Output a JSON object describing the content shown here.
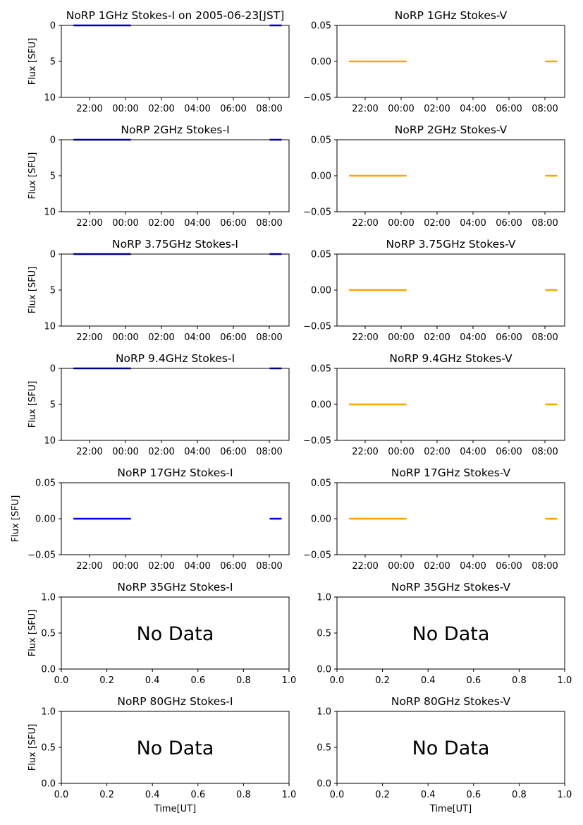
{
  "figure": {
    "ylabel": "Flux [SFU]",
    "xlabel": "Time[UT]",
    "no_data_text": "No Data",
    "colors": {
      "stokes_i": "#0000ff",
      "stokes_v": "#ffa500",
      "axes": "#000000",
      "background": "#ffffff"
    }
  },
  "chart_data": [
    {
      "id": "p1",
      "type": "line",
      "title": "NoRP 1GHz Stokes-I on 2005-06-23[JST]",
      "status": "data",
      "ylabel": "Flux [SFU]",
      "xlabel": "",
      "ylim": [
        10,
        0
      ],
      "yticks": [
        "0",
        "5",
        "10"
      ],
      "xticks": [
        "22:00",
        "00:00",
        "02:00",
        "04:00",
        "06:00",
        "08:00"
      ],
      "series_color": "#0000ff",
      "segments": [
        {
          "start": "20:55",
          "end": "00:07",
          "value": 0
        },
        {
          "start": "07:50",
          "end": "08:30",
          "value": 0
        }
      ]
    },
    {
      "id": "p2",
      "type": "line",
      "title": "NoRP 1GHz Stokes-V",
      "status": "data",
      "ylabel": "",
      "xlabel": "",
      "ylim": [
        -0.05,
        0.05
      ],
      "yticks": [
        "0.05",
        "0.00",
        "−0.05"
      ],
      "xticks": [
        "22:00",
        "00:00",
        "02:00",
        "04:00",
        "06:00",
        "08:00"
      ],
      "series_color": "#ffa500",
      "segments": [
        {
          "start": "20:55",
          "end": "00:07",
          "value": 0
        },
        {
          "start": "07:50",
          "end": "08:30",
          "value": 0
        }
      ]
    },
    {
      "id": "p3",
      "type": "line",
      "title": "NoRP 2GHz Stokes-I",
      "status": "data",
      "ylabel": "Flux [SFU]",
      "xlabel": "",
      "ylim": [
        10,
        0
      ],
      "yticks": [
        "0",
        "5",
        "10"
      ],
      "xticks": [
        "22:00",
        "00:00",
        "02:00",
        "04:00",
        "06:00",
        "08:00"
      ],
      "series_color": "#0000ff",
      "segments": [
        {
          "start": "20:55",
          "end": "00:07",
          "value": 0
        },
        {
          "start": "07:50",
          "end": "08:30",
          "value": 0
        }
      ]
    },
    {
      "id": "p4",
      "type": "line",
      "title": "NoRP 2GHz Stokes-V",
      "status": "data",
      "ylabel": "",
      "xlabel": "",
      "ylim": [
        -0.05,
        0.05
      ],
      "yticks": [
        "0.05",
        "0.00",
        "−0.05"
      ],
      "xticks": [
        "22:00",
        "00:00",
        "02:00",
        "04:00",
        "06:00",
        "08:00"
      ],
      "series_color": "#ffa500",
      "segments": [
        {
          "start": "20:55",
          "end": "00:07",
          "value": 0
        },
        {
          "start": "07:50",
          "end": "08:30",
          "value": 0
        }
      ]
    },
    {
      "id": "p5",
      "type": "line",
      "title": "NoRP 3.75GHz Stokes-I",
      "status": "data",
      "ylabel": "Flux [SFU]",
      "xlabel": "",
      "ylim": [
        10,
        0
      ],
      "yticks": [
        "0",
        "5",
        "10"
      ],
      "xticks": [
        "22:00",
        "00:00",
        "02:00",
        "04:00",
        "06:00",
        "08:00"
      ],
      "series_color": "#0000ff",
      "segments": [
        {
          "start": "20:55",
          "end": "00:07",
          "value": 0
        },
        {
          "start": "07:50",
          "end": "08:30",
          "value": 0
        }
      ]
    },
    {
      "id": "p6",
      "type": "line",
      "title": "NoRP 3.75GHz Stokes-V",
      "status": "data",
      "ylabel": "",
      "xlabel": "",
      "ylim": [
        -0.05,
        0.05
      ],
      "yticks": [
        "0.05",
        "0.00",
        "−0.05"
      ],
      "xticks": [
        "22:00",
        "00:00",
        "02:00",
        "04:00",
        "06:00",
        "08:00"
      ],
      "series_color": "#ffa500",
      "segments": [
        {
          "start": "20:55",
          "end": "00:07",
          "value": 0
        },
        {
          "start": "07:50",
          "end": "08:30",
          "value": 0
        }
      ]
    },
    {
      "id": "p7",
      "type": "line",
      "title": "NoRP 9.4GHz Stokes-I",
      "status": "data",
      "ylabel": "Flux [SFU]",
      "xlabel": "",
      "ylim": [
        10,
        0
      ],
      "yticks": [
        "0",
        "5",
        "10"
      ],
      "xticks": [
        "22:00",
        "00:00",
        "02:00",
        "04:00",
        "06:00",
        "08:00"
      ],
      "series_color": "#0000ff",
      "segments": [
        {
          "start": "20:55",
          "end": "00:07",
          "value": 0
        },
        {
          "start": "07:50",
          "end": "08:30",
          "value": 0
        }
      ]
    },
    {
      "id": "p8",
      "type": "line",
      "title": "NoRP 9.4GHz Stokes-V",
      "status": "data",
      "ylabel": "",
      "xlabel": "",
      "ylim": [
        -0.05,
        0.05
      ],
      "yticks": [
        "0.05",
        "0.00",
        "−0.05"
      ],
      "xticks": [
        "22:00",
        "00:00",
        "02:00",
        "04:00",
        "06:00",
        "08:00"
      ],
      "series_color": "#ffa500",
      "segments": [
        {
          "start": "20:55",
          "end": "00:07",
          "value": 0
        },
        {
          "start": "07:50",
          "end": "08:30",
          "value": 0
        }
      ]
    },
    {
      "id": "p9",
      "type": "line",
      "title": "NoRP 17GHz Stokes-I",
      "status": "data",
      "ylabel": "Flux [SFU]",
      "xlabel": "",
      "ylim": [
        -0.05,
        0.05
      ],
      "yticks": [
        "0.05",
        "0.00",
        "−0.05"
      ],
      "xticks": [
        "22:00",
        "00:00",
        "02:00",
        "04:00",
        "06:00",
        "08:00"
      ],
      "series_color": "#0000ff",
      "segments": [
        {
          "start": "20:55",
          "end": "00:07",
          "value": 0
        },
        {
          "start": "07:50",
          "end": "08:30",
          "value": 0
        }
      ]
    },
    {
      "id": "p10",
      "type": "line",
      "title": "NoRP 17GHz Stokes-V",
      "status": "data",
      "ylabel": "",
      "xlabel": "",
      "ylim": [
        -0.05,
        0.05
      ],
      "yticks": [
        "0.05",
        "0.00",
        "−0.05"
      ],
      "xticks": [
        "22:00",
        "00:00",
        "02:00",
        "04:00",
        "06:00",
        "08:00"
      ],
      "series_color": "#ffa500",
      "segments": [
        {
          "start": "20:55",
          "end": "00:07",
          "value": 0
        },
        {
          "start": "07:50",
          "end": "08:30",
          "value": 0
        }
      ]
    },
    {
      "id": "p11",
      "type": "line",
      "title": "NoRP 35GHz Stokes-I",
      "status": "nodata",
      "ylabel": "Flux [SFU]",
      "xlabel": "",
      "xlim": [
        0,
        1
      ],
      "ylim": [
        0,
        1
      ],
      "yticks": [
        "1.0",
        "0.5",
        "0.0"
      ],
      "xticks": [
        "0.0",
        "0.2",
        "0.4",
        "0.6",
        "0.8",
        "1.0"
      ],
      "series_color": "#0000ff",
      "segments": []
    },
    {
      "id": "p12",
      "type": "line",
      "title": "NoRP 35GHz Stokes-V",
      "status": "nodata",
      "ylabel": "",
      "xlabel": "",
      "xlim": [
        0,
        1
      ],
      "ylim": [
        0,
        1
      ],
      "yticks": [
        "1.0",
        "0.5",
        "0.0"
      ],
      "xticks": [
        "0.0",
        "0.2",
        "0.4",
        "0.6",
        "0.8",
        "1.0"
      ],
      "series_color": "#ffa500",
      "segments": []
    },
    {
      "id": "p13",
      "type": "line",
      "title": "NoRP 80GHz Stokes-I",
      "status": "nodata",
      "ylabel": "Flux [SFU]",
      "xlabel": "Time[UT]",
      "xlim": [
        0,
        1
      ],
      "ylim": [
        0,
        1
      ],
      "yticks": [
        "1.0",
        "0.5",
        "0.0"
      ],
      "xticks": [
        "0.0",
        "0.2",
        "0.4",
        "0.6",
        "0.8",
        "1.0"
      ],
      "series_color": "#0000ff",
      "segments": []
    },
    {
      "id": "p14",
      "type": "line",
      "title": "NoRP 80GHz Stokes-V",
      "status": "nodata",
      "ylabel": "",
      "xlabel": "Time[UT]",
      "xlim": [
        0,
        1
      ],
      "ylim": [
        0,
        1
      ],
      "yticks": [
        "1.0",
        "0.5",
        "0.0"
      ],
      "xticks": [
        "0.0",
        "0.2",
        "0.4",
        "0.6",
        "0.8",
        "1.0"
      ],
      "series_color": "#ffa500",
      "segments": []
    }
  ]
}
